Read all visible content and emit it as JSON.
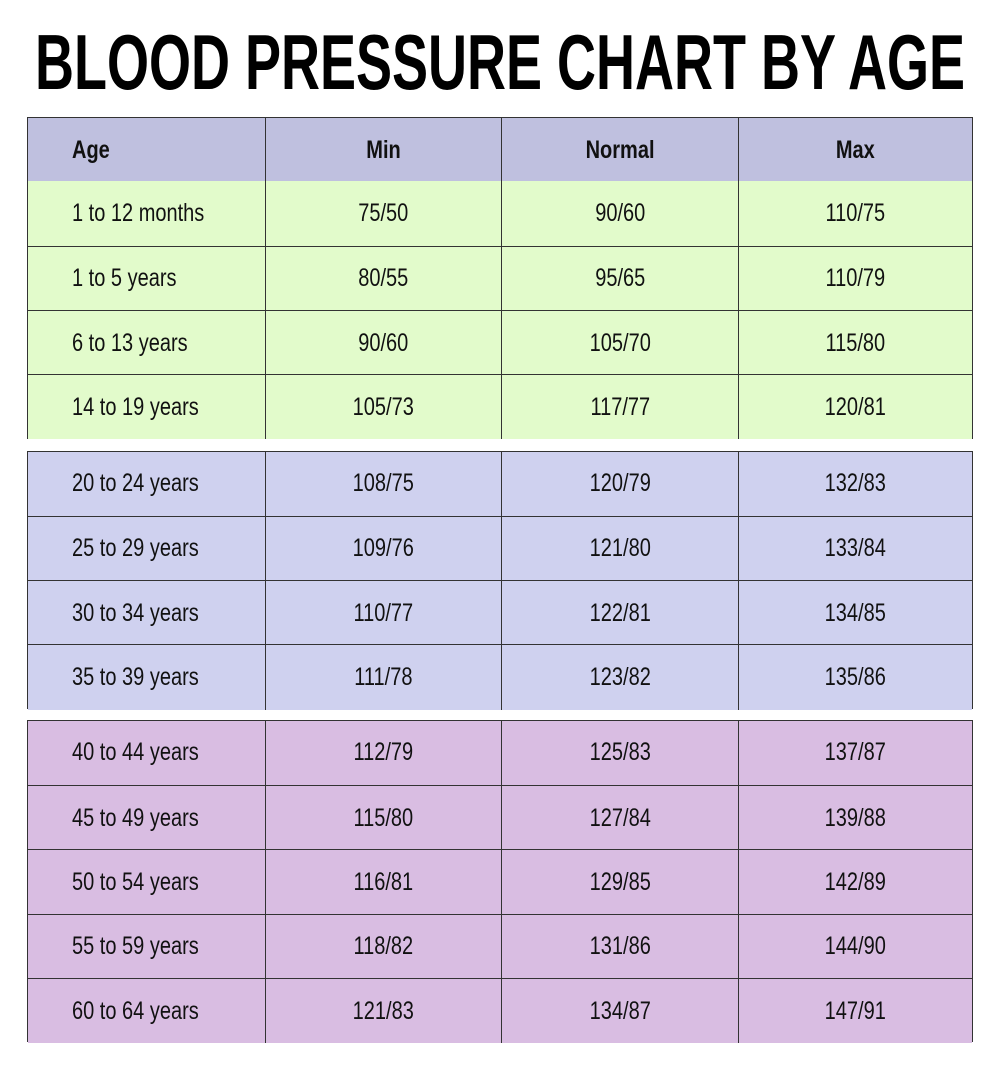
{
  "title": "BLOOD PRESSURE CHART BY AGE",
  "table": {
    "header": [
      "Age",
      "Min",
      "Normal",
      "Max"
    ],
    "groups": [
      {
        "rows": [
          [
            "1 to 12 months",
            "75/50",
            "90/60",
            "110/75"
          ],
          [
            "1 to 5 years",
            "80/55",
            "95/65",
            "110/79"
          ],
          [
            "6 to 13 years",
            "90/60",
            "105/70",
            "115/80"
          ],
          [
            "14 to 19 years",
            "105/73",
            "117/77",
            "120/81"
          ]
        ]
      },
      {
        "rows": [
          [
            "20 to 24 years",
            "108/75",
            "120/79",
            "132/83"
          ],
          [
            "25 to 29 years",
            "109/76",
            "121/80",
            "133/84"
          ],
          [
            "30 to 34 years",
            "110/77",
            "122/81",
            "134/85"
          ],
          [
            "35 to 39 years",
            "111/78",
            "123/82",
            "135/86"
          ]
        ]
      },
      {
        "rows": [
          [
            "40 to 44 years",
            "112/79",
            "125/83",
            "137/87"
          ],
          [
            "45 to 49 years",
            "115/80",
            "127/84",
            "139/88"
          ],
          [
            "50 to 54 years",
            "116/81",
            "129/85",
            "142/89"
          ],
          [
            "55 to 59 years",
            "118/82",
            "131/86",
            "144/90"
          ],
          [
            "60 to 64 years",
            "121/83",
            "134/87",
            "147/91"
          ]
        ]
      }
    ]
  }
}
